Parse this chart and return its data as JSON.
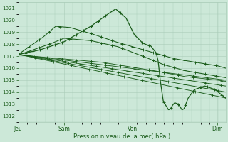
{
  "bg_color": "#cce8d8",
  "grid_color": "#aaccb8",
  "line_color": "#1a5c1a",
  "marker_color": "#1a5c1a",
  "ylim": [
    1011.5,
    1021.5
  ],
  "yticks": [
    1012,
    1013,
    1014,
    1015,
    1016,
    1017,
    1018,
    1019,
    1020,
    1021
  ],
  "xlabel": "Pression niveau de la mer( hPa )",
  "xtick_labels": [
    "Jeu",
    "Sam",
    "Ven",
    "Dim"
  ],
  "xtick_positions": [
    0.0,
    0.22,
    0.55,
    0.96
  ],
  "figsize": [
    3.2,
    2.0
  ],
  "dpi": 100
}
